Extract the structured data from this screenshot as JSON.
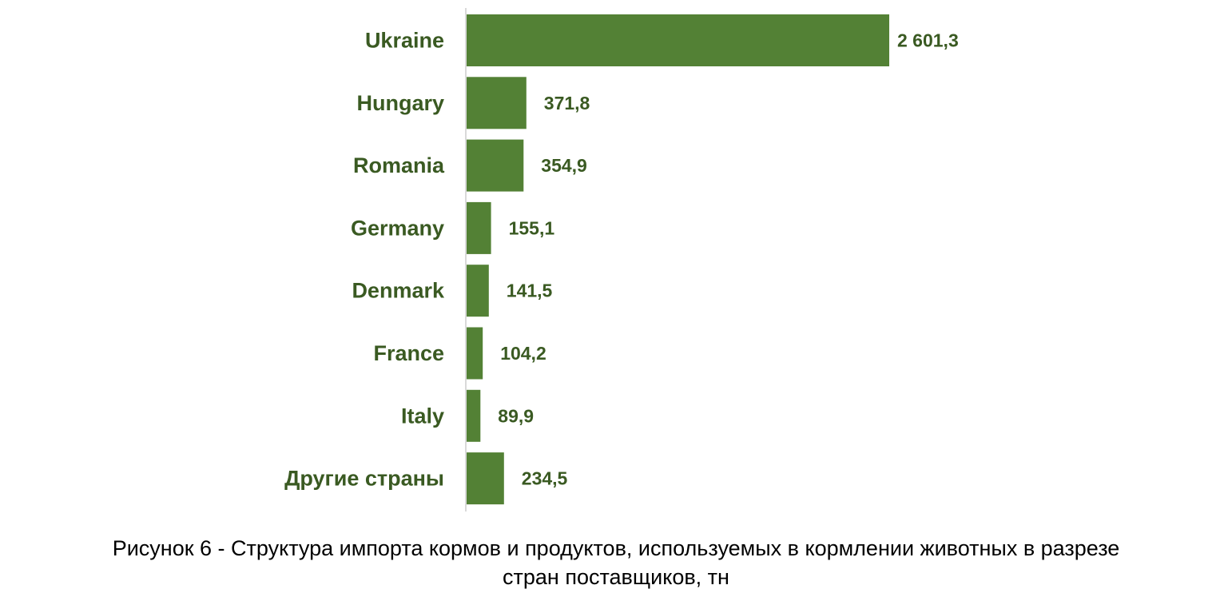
{
  "chart_data": {
    "type": "bar",
    "orientation": "horizontal",
    "categories": [
      "Ukraine",
      "Hungary",
      "Romania",
      "Germany",
      "Denmark",
      "France",
      "Italy",
      "Другие страны"
    ],
    "values": [
      2601.3,
      371.8,
      354.9,
      155.1,
      141.5,
      104.2,
      89.9,
      234.5
    ],
    "data_labels": [
      "2 601,3",
      "371,8",
      "354,9",
      "155,1",
      "141,5",
      "104,2",
      "89,9",
      "234,5"
    ],
    "xlim": [
      0,
      2601.3
    ],
    "grid": false,
    "legend": "none",
    "bar_color": "#538135",
    "label_color": "#3a5a22",
    "axis_color": "#d9d9d9"
  },
  "caption": {
    "line1": "Рисунок 6 - Структура импорта кормов и продуктов, используемых в кормлении животных в разрезе",
    "line2": "стран поставщиков, тн"
  }
}
